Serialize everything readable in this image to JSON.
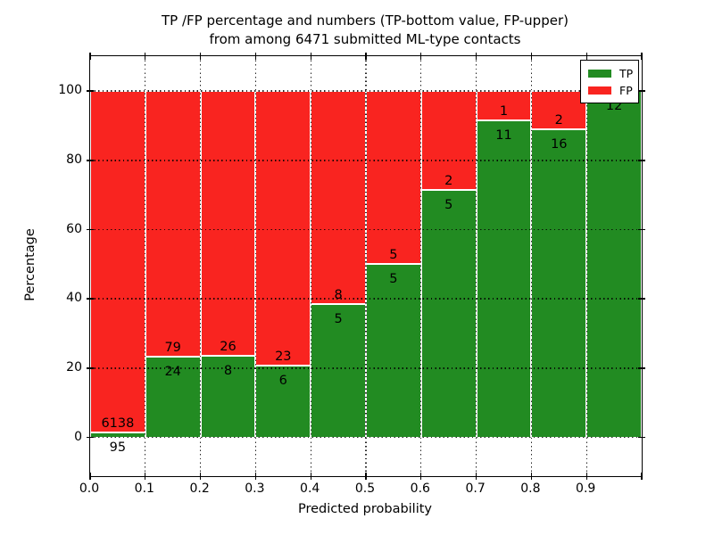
{
  "title": {
    "line1": "TP /FP percentage and numbers (TP-bottom value, FP-upper)",
    "line2": "from among 6471 submitted ML-type contacts"
  },
  "axes": {
    "xlabel": "Predicted probability",
    "ylabel": "Percentage",
    "x_tick_labels": [
      "0.0",
      "0.1",
      "0.2",
      "0.3",
      "0.4",
      "0.5",
      "0.6",
      "0.7",
      "0.8",
      "0.9"
    ],
    "y_tick_labels": [
      "0",
      "20",
      "40",
      "60",
      "80",
      "100"
    ],
    "y_tick_values": [
      0,
      20,
      40,
      60,
      80,
      100
    ]
  },
  "legend": {
    "items": [
      {
        "label": "TP",
        "color": "#228b22"
      },
      {
        "label": "FP",
        "color": "#f92420"
      }
    ]
  },
  "colors": {
    "tp": "#228b22",
    "fp": "#f92420",
    "background": "#ffffff",
    "text": "#000000"
  },
  "chart_data": {
    "type": "bar",
    "stacked": true,
    "normalized": "each bin scaled to 100%",
    "title": "TP /FP percentage and numbers (TP-bottom value, FP-upper) from among 6471 submitted ML-type contacts",
    "xlabel": "Predicted probability",
    "ylabel": "Percentage",
    "bin_width": 0.1,
    "bin_starts": [
      0.0,
      0.1,
      0.2,
      0.3,
      0.4,
      0.5,
      0.6,
      0.7,
      0.8,
      0.9
    ],
    "series": [
      {
        "name": "TP",
        "counts": [
          95,
          24,
          8,
          6,
          5,
          5,
          5,
          11,
          16,
          12
        ]
      },
      {
        "name": "FP",
        "counts": [
          6138,
          79,
          26,
          23,
          8,
          5,
          2,
          1,
          2,
          0
        ]
      }
    ],
    "tp_percent_per_bin": [
      1.5,
      23.3,
      23.5,
      20.7,
      38.5,
      50.0,
      71.4,
      91.7,
      88.9,
      100.0
    ],
    "total_contacts": 6471,
    "xlim": [
      0.0,
      1.0
    ],
    "ylim": [
      -11,
      110
    ],
    "grid": true,
    "legend_position": "upper right"
  }
}
